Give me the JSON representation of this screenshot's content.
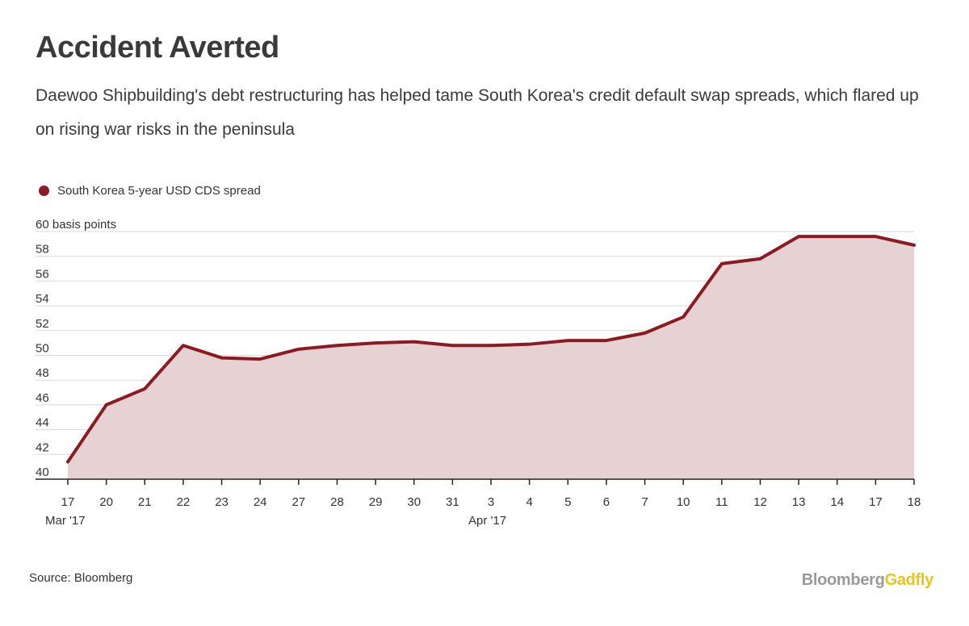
{
  "header": {
    "title": "Accident Averted",
    "subtitle": "Daewoo Shipbuilding's debt restructuring has helped tame South Korea's credit default swap spreads, which flared up on rising war risks in the peninsula"
  },
  "footer": {
    "source": "Source: Bloomberg",
    "brand_part1": "Bloomberg",
    "brand_part2": "Gadfly"
  },
  "colors": {
    "line": "#8b1a22",
    "area": "#e6d1d3",
    "grid": "#d9d9d9",
    "axis": "#222222",
    "brand_gray": "#9a9a9a",
    "brand_yellow": "#e8c51a"
  },
  "chart_data": {
    "type": "area",
    "legend_position": "top-left",
    "grid": true,
    "ylim": [
      40,
      60
    ],
    "yticks": [
      40,
      42,
      44,
      46,
      48,
      50,
      52,
      54,
      56,
      58,
      60
    ],
    "ytick_labels": [
      "40",
      "42",
      "44",
      "46",
      "48",
      "50",
      "52",
      "54",
      "56",
      "58",
      "60 basis points"
    ],
    "categories": [
      "17",
      "20",
      "21",
      "22",
      "23",
      "24",
      "27",
      "28",
      "29",
      "30",
      "31",
      "3",
      "4",
      "5",
      "6",
      "7",
      "10",
      "11",
      "12",
      "13",
      "14",
      "17",
      "18"
    ],
    "month_labels": [
      {
        "index": 0,
        "label": "Mar '17"
      },
      {
        "index": 11,
        "label": "Apr '17"
      }
    ],
    "series": [
      {
        "name": "South Korea 5-year USD CDS spread",
        "values": [
          41.4,
          46.0,
          47.3,
          50.8,
          49.8,
          49.7,
          50.5,
          50.8,
          51.0,
          51.1,
          50.8,
          50.8,
          50.9,
          51.2,
          51.2,
          51.8,
          53.1,
          57.4,
          57.8,
          59.6,
          59.6,
          59.6,
          58.9
        ]
      }
    ]
  }
}
